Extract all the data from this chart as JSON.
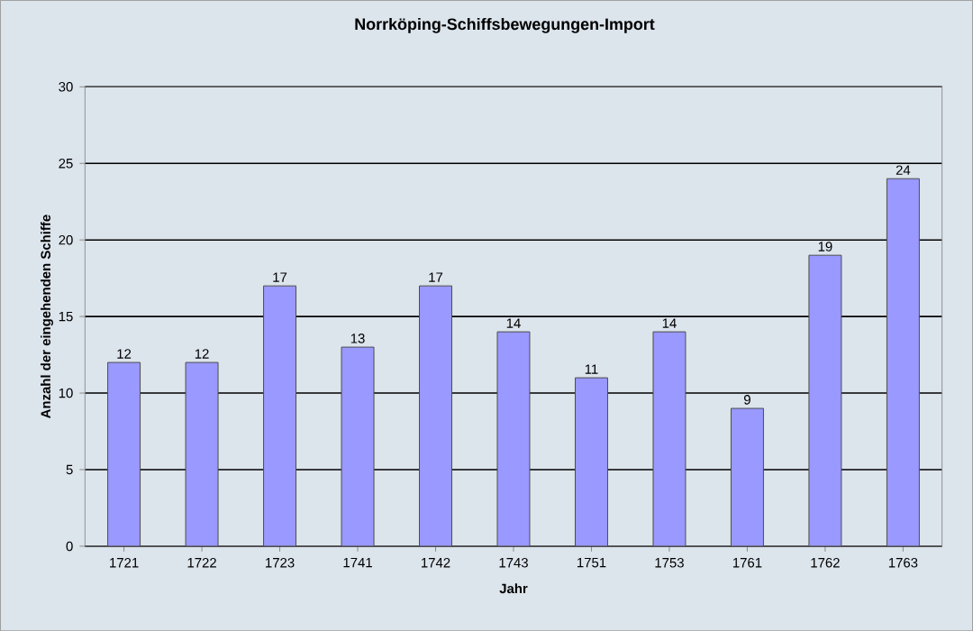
{
  "chart_data": {
    "type": "bar",
    "title": "Norrköping-Schiffsbewegungen-Import",
    "xlabel": "Jahr",
    "ylabel": "Anzahl der eingehenden Schiffe",
    "categories": [
      "1721",
      "1722",
      "1723",
      "1741",
      "1742",
      "1743",
      "1751",
      "1753",
      "1761",
      "1762",
      "1763"
    ],
    "values": [
      12,
      12,
      17,
      13,
      17,
      14,
      11,
      14,
      9,
      19,
      24
    ],
    "color": "#9999ff",
    "ylim": [
      0,
      30
    ],
    "yticks": [
      0,
      5,
      10,
      15,
      20,
      25,
      30
    ],
    "grid": "y",
    "data_labels": true
  }
}
